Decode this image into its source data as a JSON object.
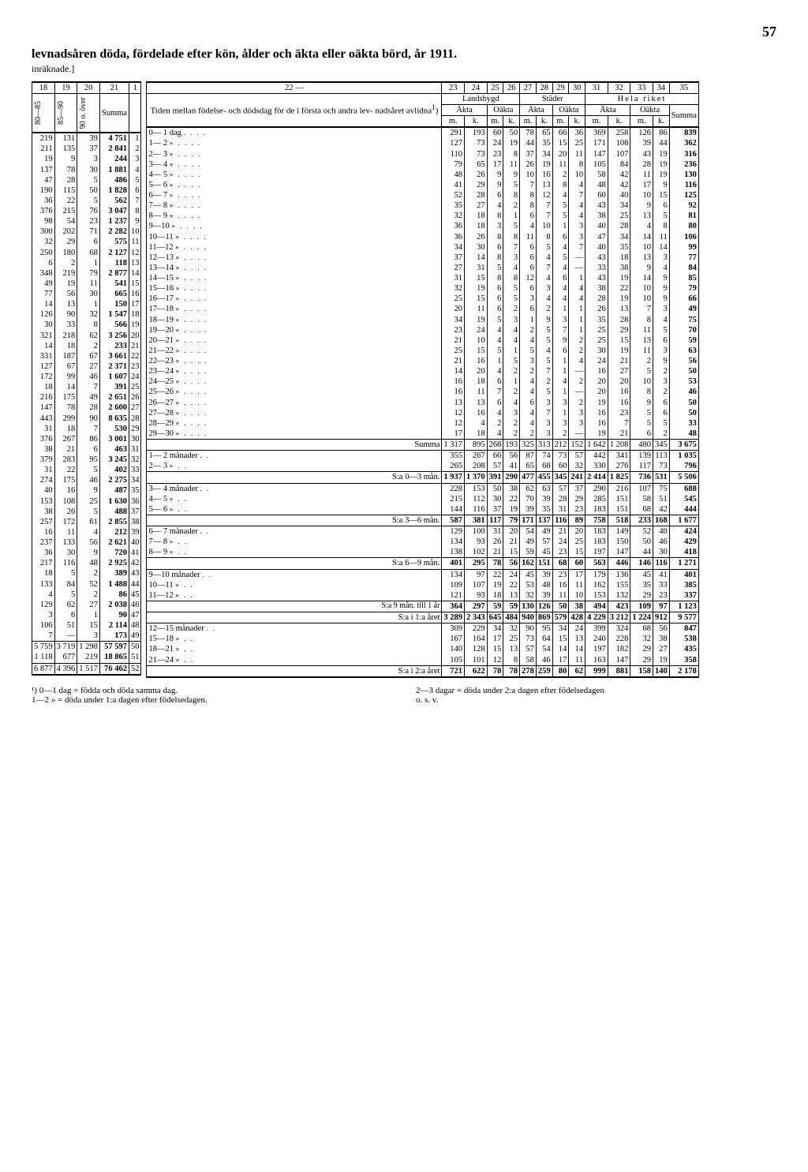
{
  "page_number": "57",
  "title": "levnadsåren döda, fördelade efter kön, ålder och äkta eller oäkta börd, år 1911.",
  "subtitle": "inräknade.]",
  "col_headers_top": [
    "18",
    "19",
    "20",
    "21",
    "1",
    "22 —",
    "23",
    "24",
    "25",
    "26",
    "27",
    "28",
    "29",
    "30",
    "31",
    "32",
    "33",
    "34",
    "35"
  ],
  "age_group_labels": [
    "80—85",
    "85—90",
    "90 o. över"
  ],
  "summa_label": "Summa",
  "time_header": "Tiden mellan födelse- och dödsdag för de i första och andra lev- nadsåret avlidna",
  "time_header_sup": "1",
  "region_labels": {
    "lands": "Landsbygd",
    "stader": "Städer",
    "hela": "Hela riket"
  },
  "legit_labels": {
    "akta": "Äkta",
    "oakta": "Oäkta"
  },
  "mk_labels": {
    "m": "m.",
    "k": "k."
  },
  "left_rows": [
    [
      "219",
      "131",
      "39",
      "4 751",
      "1"
    ],
    [
      "211",
      "135",
      "37",
      "2 841",
      "2"
    ],
    [
      "19",
      "9",
      "3",
      "244",
      "3"
    ],
    [
      "137",
      "78",
      "30",
      "1 881",
      "4"
    ],
    [
      "47",
      "28",
      "5",
      "486",
      "5"
    ],
    [
      "190",
      "115",
      "50",
      "1 828",
      "6"
    ],
    [
      "36",
      "22",
      "5",
      "562",
      "7"
    ],
    [
      "376",
      "215",
      "76",
      "3 047",
      "8"
    ],
    [
      "98",
      "54",
      "23",
      "1 237",
      "9"
    ],
    [
      "300",
      "202",
      "71",
      "2 282",
      "10"
    ],
    [
      "32",
      "29",
      "6",
      "575",
      "11"
    ],
    [
      "250",
      "180",
      "68",
      "2 127",
      "12"
    ],
    [
      "6",
      "2",
      "1",
      "118",
      "13"
    ],
    [
      "348",
      "219",
      "79",
      "2 877",
      "14"
    ],
    [
      "49",
      "19",
      "11",
      "541",
      "15"
    ],
    [
      "77",
      "56",
      "30",
      "665",
      "16"
    ],
    [
      "14",
      "13",
      "1",
      "150",
      "17"
    ],
    [
      "126",
      "90",
      "32",
      "1 547",
      "18"
    ],
    [
      "30",
      "33",
      "8",
      "566",
      "19"
    ],
    [
      "321",
      "218",
      "62",
      "3 256",
      "20"
    ],
    [
      "14",
      "18",
      "2",
      "233",
      "21"
    ],
    [
      "331",
      "187",
      "67",
      "3 661",
      "22"
    ],
    [
      "127",
      "67",
      "27",
      "2 371",
      "23"
    ],
    [
      "172",
      "99",
      "46",
      "1 607",
      "24"
    ],
    [
      "18",
      "14",
      "7",
      "391",
      "25"
    ],
    [
      "216",
      "175",
      "49",
      "2 651",
      "26"
    ],
    [
      "147",
      "78",
      "28",
      "2 600",
      "27"
    ],
    [
      "443",
      "299",
      "90",
      "8 635",
      "28"
    ],
    [
      "31",
      "18",
      "7",
      "530",
      "29"
    ],
    [
      "376",
      "267",
      "86",
      "3 001",
      "30"
    ],
    [
      "38",
      "21",
      "6",
      "463",
      "31"
    ],
    [
      "379",
      "283",
      "95",
      "3 245",
      "32"
    ],
    [
      "31",
      "22",
      "5",
      "402",
      "33"
    ],
    [
      "274",
      "175",
      "46",
      "2 275",
      "34"
    ],
    [
      "40",
      "16",
      "9",
      "487",
      "35"
    ],
    [
      "153",
      "108",
      "25",
      "1 630",
      "36"
    ],
    [
      "38",
      "26",
      "5",
      "488",
      "37"
    ],
    [
      "257",
      "172",
      "61",
      "2 855",
      "38"
    ],
    [
      "16",
      "11",
      "4",
      "212",
      "39"
    ],
    [
      "237",
      "133",
      "56",
      "2 621",
      "40"
    ],
    [
      "36",
      "30",
      "9",
      "720",
      "41"
    ],
    [
      "217",
      "116",
      "48",
      "2 925",
      "42"
    ],
    [
      "18",
      "5",
      "2",
      "389",
      "43"
    ],
    [
      "133",
      "84",
      "52",
      "1 488",
      "44"
    ],
    [
      "4",
      "5",
      "2",
      "86",
      "45"
    ],
    [
      "129",
      "62",
      "27",
      "2 038",
      "46"
    ],
    [
      "3",
      "6",
      "1",
      "90",
      "47"
    ],
    [
      "106",
      "51",
      "15",
      "2 114",
      "48"
    ],
    [
      "7",
      "—",
      "3",
      "173",
      "49"
    ]
  ],
  "left_totals": [
    [
      "5 759",
      "3 719",
      "1 298",
      "57 597",
      "50"
    ],
    [
      "1 118",
      "677",
      "219",
      "18 865",
      "51"
    ],
    [
      "6 877",
      "4 396",
      "1 517",
      "76 462",
      "52"
    ]
  ],
  "right_rows": [
    [
      "0— 1 dag",
      ". . . .",
      "291",
      "193",
      "60",
      "50",
      "78",
      "65",
      "66",
      "36",
      "369",
      "258",
      "126",
      "86",
      "839"
    ],
    [
      "1— 2",
      "»   . . . .",
      "127",
      "73",
      "24",
      "19",
      "44",
      "35",
      "15",
      "25",
      "171",
      "108",
      "39",
      "44",
      "362"
    ],
    [
      "2— 3",
      "»   . . . .",
      "110",
      "73",
      "23",
      "8",
      "37",
      "34",
      "20",
      "11",
      "147",
      "107",
      "43",
      "19",
      "316"
    ],
    [
      "3— 4",
      "»   . . . .",
      "79",
      "65",
      "17",
      "11",
      "26",
      "19",
      "11",
      "8",
      "105",
      "84",
      "28",
      "19",
      "236"
    ],
    [
      "4— 5",
      "»   . . . .",
      "48",
      "26",
      "9",
      "9",
      "10",
      "16",
      "2",
      "10",
      "58",
      "42",
      "11",
      "19",
      "130"
    ],
    [
      "5— 6",
      "»   . . . .",
      "41",
      "29",
      "9",
      "5",
      "7",
      "13",
      "8",
      "4",
      "48",
      "42",
      "17",
      "9",
      "116"
    ],
    [
      "6— 7",
      "»   . . . .",
      "52",
      "28",
      "6",
      "8",
      "8",
      "12",
      "4",
      "7",
      "60",
      "40",
      "10",
      "15",
      "125"
    ],
    [
      "7— 8",
      "»   . . . .",
      "35",
      "27",
      "4",
      "2",
      "8",
      "7",
      "5",
      "4",
      "43",
      "34",
      "9",
      "6",
      "92"
    ],
    [
      "8— 9",
      "»   . . . .",
      "32",
      "18",
      "8",
      "1",
      "6",
      "7",
      "5",
      "4",
      "38",
      "25",
      "13",
      "5",
      "81"
    ],
    [
      "9—10",
      "»   . . . .",
      "36",
      "18",
      "3",
      "5",
      "4",
      "10",
      "1",
      "3",
      "40",
      "28",
      "4",
      "8",
      "80"
    ],
    [
      "10—11",
      "»   . . . .",
      "36",
      "26",
      "8",
      "8",
      "11",
      "8",
      "6",
      "3",
      "47",
      "34",
      "14",
      "11",
      "106"
    ],
    [
      "11—12",
      "»   . . . .",
      "34",
      "30",
      "6",
      "7",
      "6",
      "5",
      "4",
      "7",
      "40",
      "35",
      "10",
      "14",
      "99"
    ],
    [
      "12—13",
      "»   . . . .",
      "37",
      "14",
      "8",
      "3",
      "6",
      "4",
      "5",
      "—",
      "43",
      "18",
      "13",
      "3",
      "77"
    ],
    [
      "13—14",
      "»   . . . .",
      "27",
      "31",
      "5",
      "4",
      "6",
      "7",
      "4",
      "—",
      "33",
      "38",
      "9",
      "4",
      "84"
    ],
    [
      "14—15",
      "»   . . . .",
      "31",
      "15",
      "8",
      "8",
      "12",
      "4",
      "6",
      "1",
      "43",
      "19",
      "14",
      "9",
      "85"
    ],
    [
      "15—16",
      "»   . . . .",
      "32",
      "19",
      "6",
      "5",
      "6",
      "3",
      "4",
      "4",
      "38",
      "22",
      "10",
      "9",
      "79"
    ],
    [
      "16—17",
      "»   . . . .",
      "25",
      "15",
      "6",
      "5",
      "3",
      "4",
      "4",
      "4",
      "28",
      "19",
      "10",
      "9",
      "66"
    ],
    [
      "17—18",
      "»   . . . .",
      "20",
      "11",
      "6",
      "2",
      "6",
      "2",
      "1",
      "1",
      "26",
      "13",
      "7",
      "3",
      "49"
    ],
    [
      "18—19",
      "»   . . . .",
      "34",
      "19",
      "5",
      "3",
      "1",
      "9",
      "3",
      "1",
      "35",
      "28",
      "8",
      "4",
      "75"
    ],
    [
      "19—20",
      "»   . . . .",
      "23",
      "24",
      "4",
      "4",
      "2",
      "5",
      "7",
      "1",
      "25",
      "29",
      "11",
      "5",
      "70"
    ],
    [
      "20—21",
      "»   . . . .",
      "21",
      "10",
      "4",
      "4",
      "4",
      "5",
      "9",
      "2",
      "25",
      "15",
      "13",
      "6",
      "59"
    ],
    [
      "21—22",
      "»   . . . .",
      "25",
      "15",
      "5",
      "1",
      "5",
      "4",
      "6",
      "2",
      "30",
      "19",
      "11",
      "3",
      "63"
    ],
    [
      "22—23",
      "»   . . . .",
      "21",
      "16",
      "1",
      "5",
      "3",
      "5",
      "1",
      "4",
      "24",
      "21",
      "2",
      "9",
      "56"
    ],
    [
      "23—24",
      "»   . . . .",
      "14",
      "20",
      "4",
      "2",
      "2",
      "7",
      "1",
      "—",
      "16",
      "27",
      "5",
      "2",
      "50"
    ],
    [
      "24—25",
      "»   . . . .",
      "16",
      "18",
      "6",
      "1",
      "4",
      "2",
      "4",
      "2",
      "20",
      "20",
      "10",
      "3",
      "53"
    ],
    [
      "25—26",
      "»   . . . .",
      "16",
      "11",
      "7",
      "2",
      "4",
      "5",
      "1",
      "—",
      "20",
      "16",
      "8",
      "2",
      "46"
    ],
    [
      "26—27",
      "»   . . . .",
      "13",
      "13",
      "6",
      "4",
      "6",
      "3",
      "3",
      "2",
      "19",
      "16",
      "9",
      "6",
      "50"
    ],
    [
      "27—28",
      "»   . . . .",
      "12",
      "16",
      "4",
      "3",
      "4",
      "7",
      "1",
      "3",
      "16",
      "23",
      "5",
      "6",
      "50"
    ],
    [
      "28—29",
      "»   . . . .",
      "12",
      "4",
      "2",
      "2",
      "4",
      "3",
      "3",
      "3",
      "16",
      "7",
      "5",
      "5",
      "33"
    ],
    [
      "29—30",
      "»   . . . .",
      "17",
      "18",
      "4",
      "2",
      "2",
      "3",
      "2",
      "—",
      "19",
      "21",
      "6",
      "2",
      "48"
    ]
  ],
  "summa_row": [
    "Summa",
    "1 317",
    "895",
    "268",
    "193",
    "325",
    "313",
    "212",
    "152",
    "1 642",
    "1 208",
    "480",
    "345",
    "3 675"
  ],
  "month_rows_a": [
    [
      "1— 2 månader",
      ". .",
      "355",
      "267",
      "66",
      "56",
      "87",
      "74",
      "73",
      "57",
      "442",
      "341",
      "139",
      "113",
      "1 035"
    ],
    [
      "2— 3",
      "»       . .",
      "265",
      "208",
      "57",
      "41",
      "65",
      "68",
      "60",
      "32",
      "330",
      "276",
      "117",
      "73",
      "796"
    ]
  ],
  "sum_03": [
    "S:a 0—3 mån.",
    "1 937",
    "1 370",
    "391",
    "290",
    "477",
    "455",
    "345",
    "241",
    "2 414",
    "1 825",
    "736",
    "531",
    "5 506"
  ],
  "month_rows_b": [
    [
      "3— 4 månader",
      ". .",
      "228",
      "153",
      "50",
      "38",
      "62",
      "63",
      "57",
      "37",
      "290",
      "216",
      "107",
      "75",
      "688"
    ],
    [
      "4— 5",
      "»       . .",
      "215",
      "112",
      "30",
      "22",
      "70",
      "39",
      "28",
      "29",
      "285",
      "151",
      "58",
      "51",
      "545"
    ],
    [
      "5— 6",
      "»       . .",
      "144",
      "116",
      "37",
      "19",
      "39",
      "35",
      "31",
      "23",
      "183",
      "151",
      "68",
      "42",
      "444"
    ]
  ],
  "sum_36": [
    "S:a 3—6 mån.",
    "587",
    "381",
    "117",
    "79",
    "171",
    "137",
    "116",
    "89",
    "758",
    "518",
    "233",
    "168",
    "1 677"
  ],
  "month_rows_c": [
    [
      "6— 7 månader",
      ". .",
      "129",
      "100",
      "31",
      "20",
      "54",
      "49",
      "21",
      "20",
      "183",
      "149",
      "52",
      "40",
      "424"
    ],
    [
      "7— 8",
      "»       . .",
      "134",
      "93",
      "26",
      "21",
      "49",
      "57",
      "24",
      "25",
      "183",
      "150",
      "50",
      "46",
      "429"
    ],
    [
      "8— 9",
      "»       . .",
      "138",
      "102",
      "21",
      "15",
      "59",
      "45",
      "23",
      "15",
      "197",
      "147",
      "44",
      "30",
      "418"
    ]
  ],
  "sum_69": [
    "S:a 6—9 mån.",
    "401",
    "295",
    "78",
    "56",
    "162",
    "151",
    "68",
    "60",
    "563",
    "446",
    "146",
    "116",
    "1 271"
  ],
  "month_rows_d": [
    [
      "9—10 månader",
      ". .",
      "134",
      "97",
      "22",
      "24",
      "45",
      "39",
      "23",
      "17",
      "179",
      "136",
      "45",
      "41",
      "401"
    ],
    [
      "10—11",
      "»       . .",
      "109",
      "107",
      "19",
      "22",
      "53",
      "48",
      "16",
      "11",
      "162",
      "155",
      "35",
      "33",
      "385"
    ],
    [
      "11—12",
      "»       . .",
      "121",
      "93",
      "18",
      "13",
      "32",
      "39",
      "11",
      "10",
      "153",
      "132",
      "29",
      "23",
      "337"
    ]
  ],
  "sum_9m1y": [
    "S:a 9 mån. till 1 år",
    "364",
    "297",
    "59",
    "59",
    "130",
    "126",
    "50",
    "38",
    "494",
    "423",
    "109",
    "97",
    "1 123"
  ],
  "sum_1a": [
    "S:a i 1:a året",
    "3 289",
    "2 343",
    "645",
    "484",
    "940",
    "869",
    "579",
    "428",
    "4 229",
    "3 212",
    "1 224",
    "912",
    "9 577"
  ],
  "year2_rows": [
    [
      "12—15 månader",
      ". .",
      "309",
      "229",
      "34",
      "32",
      "90",
      "95",
      "34",
      "24",
      "399",
      "324",
      "68",
      "56",
      "847"
    ],
    [
      "15—18",
      "»       . .",
      "167",
      "164",
      "17",
      "25",
      "73",
      "64",
      "15",
      "13",
      "240",
      "228",
      "32",
      "38",
      "538"
    ],
    [
      "18—21",
      "»       . .",
      "140",
      "128",
      "15",
      "13",
      "57",
      "54",
      "14",
      "14",
      "197",
      "182",
      "29",
      "27",
      "435"
    ],
    [
      "21—24",
      "»       . .",
      "105",
      "101",
      "12",
      "8",
      "58",
      "46",
      "17",
      "11",
      "163",
      "147",
      "29",
      "19",
      "358"
    ]
  ],
  "sum_2a": [
    "S:a i 2:a året",
    "721",
    "622",
    "78",
    "78",
    "278",
    "259",
    "80",
    "62",
    "999",
    "881",
    "158",
    "140",
    "2 178"
  ],
  "footnotes": {
    "left1": "¹) 0—1 dag = födda och döda samma dag.",
    "left2": "1—2   »   = döda under 1:a dagen efter födelsedagen.",
    "right1": "2—3 dagar = döda under 2:a dagen efter födelsedagen",
    "right2": "o. s. v."
  }
}
